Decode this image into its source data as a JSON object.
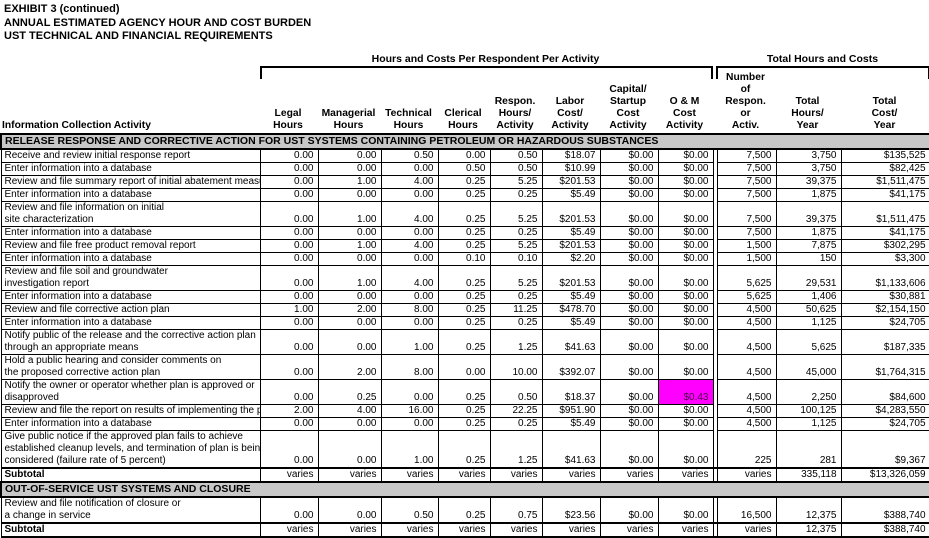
{
  "title_lines": [
    "EXHIBIT 3 (continued)",
    "ANNUAL ESTIMATED AGENCY HOUR AND COST BURDEN",
    "UST TECHNICAL AND FINANCIAL REQUIREMENTS"
  ],
  "group_headers": {
    "per_respondent": "Hours and Costs Per Respondent Per Activity",
    "totals": "Total Hours and Costs"
  },
  "columns": {
    "activity": "Information Collection Activity",
    "legal": "Legal\nHours",
    "managerial": "Managerial\nHours",
    "technical": "Technical\nHours",
    "clerical": "Clerical\nHours",
    "respon": "Respon.\nHours/\nActivity",
    "labor": "Labor\nCost/\nActivity",
    "capital": "Capital/\nStartup\nCost\nActivity",
    "oandm": "O & M\nCost\nActivity",
    "number": "Number\nof\nRespon.\nor\nActiv.",
    "total_hours": "Total\nHours/\nYear",
    "total_cost": "Total\nCost/\nYear"
  },
  "highlight_color": "#ff00ff",
  "section_header_bg": "#c8c8c8",
  "sections": [
    {
      "header": "RELEASE RESPONSE AND CORRECTIVE ACTION FOR UST SYSTEMS CONTAINING PETROLEUM OR HAZARDOUS SUBSTANCES",
      "rows": [
        {
          "label_lines": [
            "Receive and review initial response report"
          ],
          "values": [
            "0.00",
            "0.00",
            "0.50",
            "0.00",
            "0.50",
            "$18.07",
            "$0.00",
            "$0.00",
            "7,500",
            "3,750",
            "$135,525"
          ]
        },
        {
          "label_lines": [
            "Enter information into a database"
          ],
          "values": [
            "0.00",
            "0.00",
            "0.00",
            "0.50",
            "0.50",
            "$10.99",
            "$0.00",
            "$0.00",
            "7,500",
            "3,750",
            "$82,425"
          ]
        },
        {
          "label_lines": [
            "Review and file summary report of initial abatement measures"
          ],
          "values": [
            "0.00",
            "1.00",
            "4.00",
            "0.25",
            "5.25",
            "$201.53",
            "$0.00",
            "$0.00",
            "7,500",
            "39,375",
            "$1,511,475"
          ]
        },
        {
          "label_lines": [
            "Enter information into a database"
          ],
          "values": [
            "0.00",
            "0.00",
            "0.00",
            "0.25",
            "0.25",
            "$5.49",
            "$0.00",
            "$0.00",
            "7,500",
            "1,875",
            "$41,175"
          ]
        },
        {
          "label_lines": [
            "Review and file information on initial",
            "site characterization"
          ],
          "values": [
            "0.00",
            "1.00",
            "4.00",
            "0.25",
            "5.25",
            "$201.53",
            "$0.00",
            "$0.00",
            "7,500",
            "39,375",
            "$1,511,475"
          ]
        },
        {
          "label_lines": [
            "Enter information into a database"
          ],
          "values": [
            "0.00",
            "0.00",
            "0.00",
            "0.25",
            "0.25",
            "$5.49",
            "$0.00",
            "$0.00",
            "7,500",
            "1,875",
            "$41,175"
          ]
        },
        {
          "label_lines": [
            "Review and file free product removal report"
          ],
          "values": [
            "0.00",
            "1.00",
            "4.00",
            "0.25",
            "5.25",
            "$201.53",
            "$0.00",
            "$0.00",
            "1,500",
            "7,875",
            "$302,295"
          ]
        },
        {
          "label_lines": [
            "Enter information into a database"
          ],
          "values": [
            "0.00",
            "0.00",
            "0.00",
            "0.10",
            "0.10",
            "$2.20",
            "$0.00",
            "$0.00",
            "1,500",
            "150",
            "$3,300"
          ]
        },
        {
          "label_lines": [
            "Review and file soil and groundwater",
            "investigation report"
          ],
          "values": [
            "0.00",
            "1.00",
            "4.00",
            "0.25",
            "5.25",
            "$201.53",
            "$0.00",
            "$0.00",
            "5,625",
            "29,531",
            "$1,133,606"
          ]
        },
        {
          "label_lines": [
            "Enter information into a database"
          ],
          "values": [
            "0.00",
            "0.00",
            "0.00",
            "0.25",
            "0.25",
            "$5.49",
            "$0.00",
            "$0.00",
            "5,625",
            "1,406",
            "$30,881"
          ]
        },
        {
          "label_lines": [
            "Review and file corrective action plan"
          ],
          "values": [
            "1.00",
            "2.00",
            "8.00",
            "0.25",
            "11.25",
            "$478.70",
            "$0.00",
            "$0.00",
            "4,500",
            "50,625",
            "$2,154,150"
          ]
        },
        {
          "label_lines": [
            "Enter information into a database"
          ],
          "values": [
            "0.00",
            "0.00",
            "0.00",
            "0.25",
            "0.25",
            "$5.49",
            "$0.00",
            "$0.00",
            "4,500",
            "1,125",
            "$24,705"
          ]
        },
        {
          "label_lines": [
            "Notify public of the release and the corrective action plan",
            "through an appropriate means"
          ],
          "values": [
            "0.00",
            "0.00",
            "1.00",
            "0.25",
            "1.25",
            "$41.63",
            "$0.00",
            "$0.00",
            "4,500",
            "5,625",
            "$187,335"
          ]
        },
        {
          "label_lines": [
            "Hold a public hearing and consider comments on",
            "the proposed corrective action plan"
          ],
          "values": [
            "0.00",
            "2.00",
            "8.00",
            "0.00",
            "10.00",
            "$392.07",
            "$0.00",
            "$0.00",
            "4,500",
            "45,000",
            "$1,764,315"
          ]
        },
        {
          "label_lines": [
            "Notify the owner or operator whether plan is approved or",
            "disapproved"
          ],
          "values": [
            "0.00",
            "0.25",
            "0.00",
            "0.25",
            "0.50",
            "$18.37",
            "$0.00",
            "$0.43",
            "4,500",
            "2,250",
            "$84,600"
          ],
          "highlight_index": 7
        },
        {
          "label_lines": [
            "Review and file the report on results of implementing the plan"
          ],
          "values": [
            "2.00",
            "4.00",
            "16.00",
            "0.25",
            "22.25",
            "$951.90",
            "$0.00",
            "$0.00",
            "4,500",
            "100,125",
            "$4,283,550"
          ]
        },
        {
          "label_lines": [
            "Enter information into a database"
          ],
          "values": [
            "0.00",
            "0.00",
            "0.00",
            "0.25",
            "0.25",
            "$5.49",
            "$0.00",
            "$0.00",
            "4,500",
            "1,125",
            "$24,705"
          ]
        },
        {
          "label_lines": [
            "Give public notice if the approved plan fails to achieve",
            "established cleanup levels, and termination of plan is being",
            "considered (failure rate of 5 percent)"
          ],
          "values": [
            "0.00",
            "0.00",
            "1.00",
            "0.25",
            "1.25",
            "$41.63",
            "$0.00",
            "$0.00",
            "225",
            "281",
            "$9,367"
          ]
        },
        {
          "label_lines": [
            "Subtotal"
          ],
          "subtotal": true,
          "values": [
            "varies",
            "varies",
            "varies",
            "varies",
            "varies",
            "varies",
            "varies",
            "varies",
            "varies",
            "335,118",
            "$13,326,059"
          ]
        }
      ]
    },
    {
      "header": "OUT-OF-SERVICE UST SYSTEMS AND CLOSURE",
      "rows": [
        {
          "label_lines": [
            "Review and file notification of closure or",
            "a change in service"
          ],
          "values": [
            "0.00",
            "0.00",
            "0.50",
            "0.25",
            "0.75",
            "$23.56",
            "$0.00",
            "$0.00",
            "16,500",
            "12,375",
            "$388,740"
          ]
        },
        {
          "label_lines": [
            "Subtotal"
          ],
          "subtotal": true,
          "values": [
            "varies",
            "varies",
            "varies",
            "varies",
            "varies",
            "varies",
            "varies",
            "varies",
            "varies",
            "12,375",
            "$388,740"
          ]
        }
      ]
    }
  ]
}
